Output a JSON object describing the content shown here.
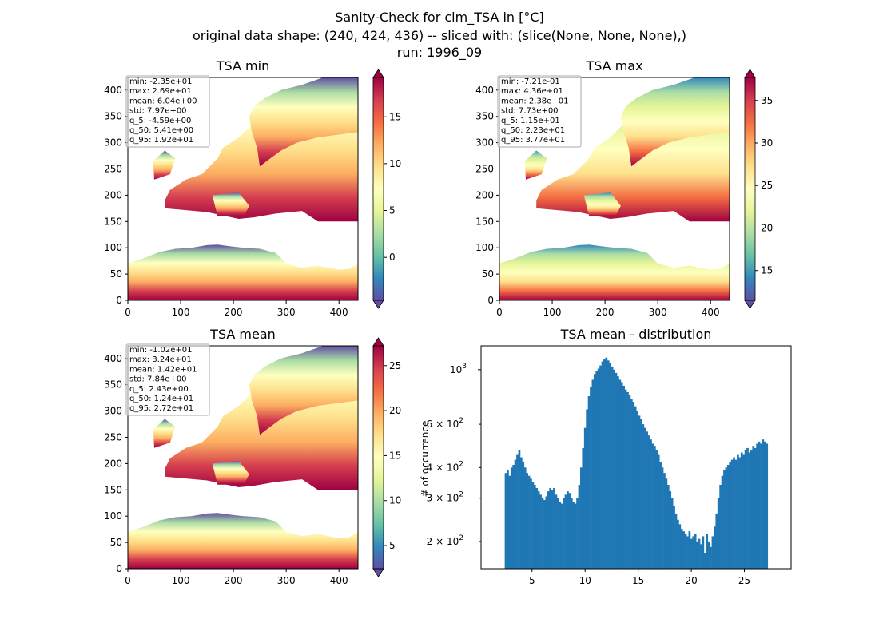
{
  "suptitle": {
    "line1": "Sanity-Check for clm_TSA in [°C]",
    "line2": "original data shape: (240, 424, 436) -- sliced with: (slice(None, None, None),)",
    "line3": "run: 1996_09"
  },
  "colors": {
    "bar": "#1f77b4",
    "colormap": "Spectral_r",
    "colormap_stops": [
      "#5e4fa2",
      "#3288bd",
      "#66c2a5",
      "#abdda4",
      "#e6f598",
      "#ffffbf",
      "#fee08b",
      "#fdae61",
      "#f46d43",
      "#d53e4f",
      "#9e0142"
    ]
  },
  "chart_data": [
    {
      "type": "heatmap",
      "title": "TSA min",
      "xlim": [
        0,
        436
      ],
      "ylim": [
        0,
        424
      ],
      "xticks": [
        "0",
        "100",
        "200",
        "300",
        "400"
      ],
      "yticks": [
        "0",
        "50",
        "100",
        "150",
        "200",
        "250",
        "300",
        "350",
        "400"
      ],
      "colorbar": {
        "ticks": [
          "0",
          "5",
          "10",
          "15"
        ],
        "range": [
          -4.59,
          19.2
        ],
        "extend": "both"
      },
      "stats": [
        "min: -2.35e+01",
        "max: 2.69e+01",
        "mean: 6.04e+00",
        "std: 7.97e+00",
        "q_5: -4.59e+00",
        "q_50: 5.41e+00",
        "q_95: 1.92e+01"
      ]
    },
    {
      "type": "heatmap",
      "title": "TSA max",
      "xlim": [
        0,
        436
      ],
      "ylim": [
        0,
        424
      ],
      "xticks": [
        "0",
        "100",
        "200",
        "300",
        "400"
      ],
      "yticks": [
        "0",
        "50",
        "100",
        "150",
        "200",
        "250",
        "300",
        "350",
        "400"
      ],
      "colorbar": {
        "ticks": [
          "15",
          "20",
          "25",
          "30",
          "35"
        ],
        "range": [
          11.5,
          37.7
        ],
        "extend": "both"
      },
      "stats": [
        "min: -7.21e-01",
        "max: 4.36e+01",
        "mean: 2.38e+01",
        "std: 7.73e+00",
        "q_5: 1.15e+01",
        "q_50: 2.23e+01",
        "q_95: 3.77e+01"
      ]
    },
    {
      "type": "heatmap",
      "title": "TSA mean",
      "xlim": [
        0,
        436
      ],
      "ylim": [
        0,
        424
      ],
      "xticks": [
        "0",
        "100",
        "200",
        "300",
        "400"
      ],
      "yticks": [
        "0",
        "50",
        "100",
        "150",
        "200",
        "250",
        "300",
        "350",
        "400"
      ],
      "colorbar": {
        "ticks": [
          "5",
          "10",
          "15",
          "20",
          "25"
        ],
        "range": [
          2.43,
          27.2
        ],
        "extend": "both"
      },
      "stats": [
        "min: -1.02e+01",
        "max: 3.24e+01",
        "mean: 1.42e+01",
        "std: 7.84e+00",
        "q_5: 2.43e+00",
        "q_50: 1.24e+01",
        "q_95: 2.72e+01"
      ]
    },
    {
      "type": "bar",
      "title": "TSA mean - distribution",
      "ylabel": "# of occurrence",
      "yscale": "log",
      "xlim": [
        0.2,
        29.4
      ],
      "ylim": [
        155,
        1250
      ],
      "xticks": [
        5,
        10,
        15,
        20,
        25
      ],
      "xtick_labels": [
        "5",
        "10",
        "15",
        "20",
        "25"
      ],
      "yticks_major": [
        {
          "value": 1000,
          "base": "10",
          "exp": "3"
        }
      ],
      "yticks_minor": [
        {
          "value": 200,
          "coef": "2",
          "base": "10",
          "exp": "2"
        },
        {
          "value": 300,
          "coef": "3",
          "base": "10",
          "exp": "2"
        },
        {
          "value": 400,
          "coef": "4",
          "base": "10",
          "exp": "2"
        },
        {
          "value": 600,
          "coef": "6",
          "base": "10",
          "exp": "2"
        }
      ],
      "bin_start": 2.43,
      "bin_end": 27.2,
      "counts": [
        380,
        390,
        370,
        400,
        410,
        430,
        450,
        470,
        440,
        420,
        400,
        380,
        370,
        360,
        350,
        340,
        330,
        320,
        310,
        300,
        295,
        305,
        320,
        330,
        325,
        330,
        310,
        300,
        290,
        285,
        300,
        310,
        320,
        315,
        300,
        290,
        285,
        300,
        340,
        400,
        480,
        580,
        690,
        780,
        850,
        910,
        960,
        990,
        1010,
        1040,
        1080,
        1100,
        1120,
        1090,
        1060,
        1030,
        1000,
        970,
        940,
        910,
        890,
        860,
        830,
        810,
        790,
        760,
        740,
        710,
        680,
        650,
        630,
        600,
        580,
        560,
        540,
        520,
        500,
        490,
        470,
        450,
        420,
        400,
        380,
        360,
        340,
        320,
        300,
        280,
        260,
        245,
        235,
        225,
        220,
        215,
        210,
        220,
        205,
        210,
        215,
        200,
        205,
        195,
        210,
        180,
        215,
        200,
        190,
        210,
        230,
        260,
        300,
        340,
        370,
        390,
        400,
        410,
        420,
        430,
        440,
        430,
        450,
        440,
        460,
        450,
        470,
        480,
        460,
        470,
        490,
        480,
        500,
        510,
        500,
        520,
        510,
        500
      ]
    }
  ]
}
